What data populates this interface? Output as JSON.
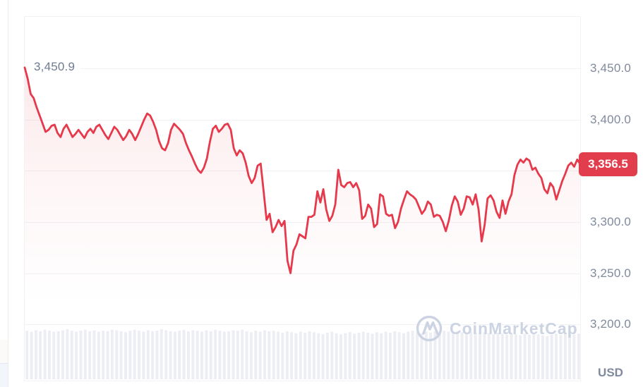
{
  "page": {
    "currency_label": "USD",
    "start_point_label": "3,450.9",
    "current_price": {
      "label": "3,356.5",
      "value": 3356.5,
      "start_value": 3450.9
    },
    "watermark": {
      "text": "CoinMarketCap",
      "logo": "coinmarketcap-logo"
    }
  },
  "colors": {
    "line": "#e6394b",
    "badge_bg": "#e23d4d",
    "badge_text": "#ffffff",
    "axis_text": "#808a9d",
    "start_label_text": "#6f7b93",
    "grid": "#f0f2f6",
    "plot_border": "#f1f2f4",
    "volume_bar": "#eceef3",
    "watermark": "#ccd3e2",
    "page_divider": "#ececef",
    "corner_blue": "#f2f5fc"
  },
  "chart_data": {
    "type": "line",
    "title": "",
    "xlabel": "",
    "ylabel": "USD",
    "legend": "none",
    "grid": "horizontal-only",
    "ylim": [
      3145,
      3501
    ],
    "y_ticks": [
      {
        "label": "3,450.0",
        "value": 3450
      },
      {
        "label": "3,400.0",
        "value": 3400
      },
      {
        "label": "3,300.0",
        "value": 3300
      },
      {
        "label": "3,250.0",
        "value": 3250
      },
      {
        "label": "3,200.0",
        "value": 3200
      }
    ],
    "gridline_values": [
      3450,
      3400,
      3350,
      3300,
      3250,
      3200
    ],
    "start_value": 3450.9,
    "end_value": 3356.5,
    "min_value": 3250,
    "max_value": 3450.9,
    "series": [
      {
        "name": "price",
        "values": [
          3450.9,
          3440,
          3425,
          3421,
          3412,
          3404,
          3396,
          3388,
          3390,
          3394,
          3395,
          3387,
          3383,
          3391,
          3395,
          3389,
          3383,
          3386,
          3390,
          3386,
          3382,
          3388,
          3391,
          3387,
          3393,
          3395,
          3390,
          3385,
          3381,
          3387,
          3393,
          3390,
          3385,
          3380,
          3384,
          3390,
          3386,
          3380,
          3386,
          3393,
          3400,
          3406,
          3404,
          3398,
          3390,
          3379,
          3372,
          3370,
          3377,
          3390,
          3396,
          3393,
          3390,
          3386,
          3377,
          3370,
          3364,
          3357,
          3351,
          3348,
          3353,
          3362,
          3378,
          3391,
          3394,
          3388,
          3391,
          3395,
          3396,
          3390,
          3372,
          3365,
          3370,
          3367,
          3358,
          3345,
          3338,
          3343,
          3355,
          3357,
          3330,
          3302,
          3308,
          3290,
          3295,
          3302,
          3296,
          3301,
          3262,
          3250,
          3272,
          3278,
          3288,
          3286,
          3284,
          3305,
          3305,
          3307,
          3330,
          3319,
          3332,
          3312,
          3301,
          3306,
          3317,
          3351,
          3336,
          3334,
          3338,
          3339,
          3334,
          3338,
          3331,
          3303,
          3306,
          3317,
          3313,
          3295,
          3298,
          3327,
          3325,
          3308,
          3306,
          3307,
          3294,
          3300,
          3313,
          3322,
          3330,
          3327,
          3325,
          3322,
          3315,
          3308,
          3312,
          3320,
          3317,
          3305,
          3307,
          3306,
          3300,
          3291,
          3301,
          3316,
          3325,
          3320,
          3307,
          3313,
          3325,
          3324,
          3317,
          3327,
          3312,
          3281,
          3297,
          3323,
          3326,
          3321,
          3310,
          3304,
          3321,
          3308,
          3320,
          3327,
          3346,
          3356,
          3361,
          3358,
          3362,
          3360,
          3351,
          3353,
          3347,
          3343,
          3332,
          3328,
          3338,
          3334,
          3322,
          3331,
          3340,
          3347,
          3355,
          3358,
          3354,
          3361,
          3356.5
        ]
      }
    ],
    "volume_bars_normalized": [
      0.97,
      0.95,
      0.98,
      0.96,
      0.99,
      0.97,
      0.95,
      0.96,
      0.98,
      1.0,
      0.97,
      0.95,
      0.97,
      0.99,
      0.96,
      0.98,
      0.95,
      0.97,
      0.96,
      0.99,
      0.98,
      0.96,
      0.94,
      0.97,
      0.99,
      0.97,
      0.95,
      0.98,
      0.96,
      0.97,
      1.0,
      0.98,
      0.96,
      0.95,
      0.97,
      0.99,
      0.96,
      0.98,
      0.97,
      0.95,
      0.98,
      0.96,
      0.99,
      0.97,
      0.95,
      0.96,
      0.98,
      0.97,
      0.99,
      0.96,
      0.94,
      0.97,
      0.95,
      0.98,
      0.96,
      0.97,
      0.95,
      0.93,
      0.96,
      0.94,
      0.92,
      0.95,
      0.93,
      0.96,
      0.94,
      0.92,
      0.9,
      0.93,
      0.95,
      0.92,
      0.9,
      0.92,
      0.94,
      0.91,
      0.93,
      0.95,
      0.93,
      0.91,
      0.94,
      0.92,
      0.95,
      0.93,
      0.96,
      0.94,
      0.92,
      0.95,
      0.97,
      0.94,
      0.92,
      0.95,
      0.93,
      0.96,
      0.94,
      0.97,
      0.95,
      0.93,
      0.96,
      0.94,
      0.92,
      0.95,
      0.93,
      0.91,
      0.94,
      0.92,
      0.9,
      0.93,
      0.91,
      0.89,
      0.92,
      0.9,
      0.88,
      0.91,
      0.89,
      0.92,
      0.9,
      0.88,
      0.86,
      0.89,
      0.91,
      0.88,
      0.9,
      0.92,
      0.89,
      0.91
    ]
  }
}
